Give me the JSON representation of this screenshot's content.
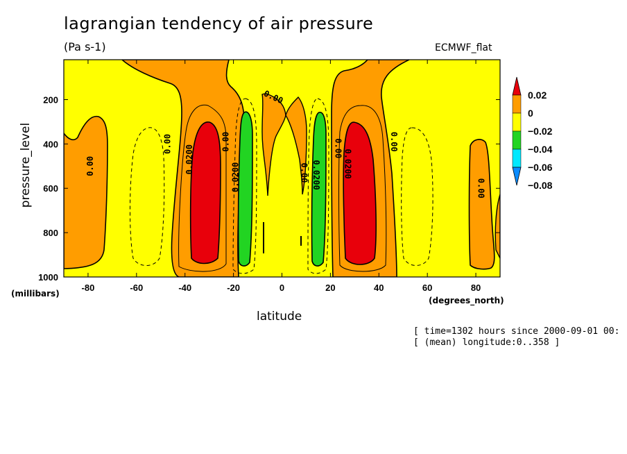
{
  "chart_data": {
    "type": "heatmap",
    "title": "lagrangian tendency of air pressure",
    "units": "(Pa s-1)",
    "source": "ECMWF_flat",
    "xlabel": "latitude",
    "xunit": "(degrees_north)",
    "ylabel": "pressure_level",
    "yunit": "(millibars)",
    "xlim": [
      -90,
      90
    ],
    "ylim": [
      1000,
      20
    ],
    "x_ticks": [
      -80,
      -60,
      -40,
      -20,
      0,
      20,
      40,
      60,
      80
    ],
    "y_ticks": [
      200,
      400,
      600,
      800,
      1000
    ],
    "legend": {
      "levels": [
        "0.02",
        "0",
        "−0.02",
        "−0.04",
        "−0.06",
        "−0.08"
      ],
      "colors": [
        "#e8000b",
        "#ff9d00",
        "#ffff00",
        "#22d422",
        "#00e8ff",
        "#0a8bff"
      ]
    },
    "contour_labels": [
      {
        "text": "0.00",
        "lat": -78,
        "p": 500
      },
      {
        "text": "0.00",
        "lat": -46,
        "p": 400
      },
      {
        "text": "0.0200",
        "lat": -37,
        "p": 470
      },
      {
        "text": "0.00",
        "lat": -22,
        "p": 390
      },
      {
        "text": "0.0200",
        "lat": -18,
        "p": 550
      },
      {
        "text": "0.00",
        "lat": -4,
        "p": 200
      },
      {
        "text": "0.00",
        "lat": 8,
        "p": 530
      },
      {
        "text": "0.0200",
        "lat": 13,
        "p": 540
      },
      {
        "text": "0.00",
        "lat": 22,
        "p": 420
      },
      {
        "text": "0.0200",
        "lat": 26,
        "p": 490
      },
      {
        "text": "0.00",
        "lat": 45,
        "p": 390
      },
      {
        "text": "0.00",
        "lat": 81,
        "p": 600
      }
    ],
    "regions": [
      {
        "value_range": "0.02+",
        "lat_center": -31,
        "p_range": [
          290,
          940
        ]
      },
      {
        "value_range": "0.02+",
        "lat_center": 30,
        "p_range": [
          290,
          940
        ]
      },
      {
        "value_range": "-0.02 to -0.04",
        "lat_center": -16,
        "p_range": [
          260,
          950
        ]
      },
      {
        "value_range": "-0.02 to -0.04",
        "lat_center": 15,
        "p_range": [
          260,
          950
        ]
      }
    ]
  },
  "meta": {
    "time": "[ time=1302 hours since 2000-09-01 00:",
    "longitude": "[ (mean) longitude:0..358 ]"
  }
}
